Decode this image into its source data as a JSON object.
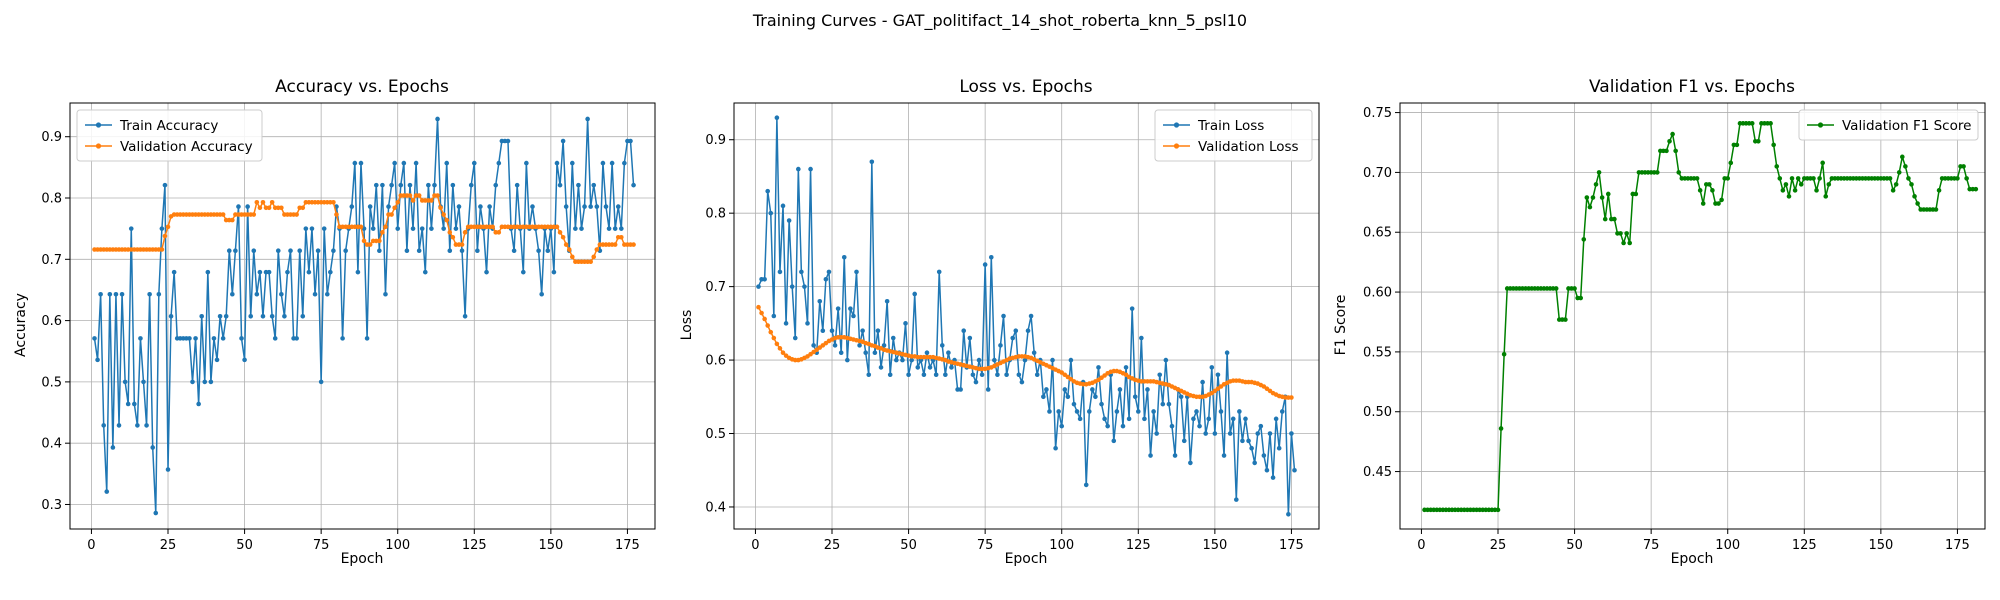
{
  "figure": {
    "suptitle": "Training Curves - GAT_politifact_14_shot_roberta_knn_5_psl10"
  },
  "colors": {
    "train": "#1f77b4",
    "validation": "#ff7f0e",
    "f1": "#008000"
  },
  "chart_data": [
    {
      "type": "line",
      "title": "Accuracy vs. Epochs",
      "xlabel": "Epoch",
      "ylabel": "Accuracy",
      "xlim": [
        -7,
        184
      ],
      "ylim": [
        0.26,
        0.955
      ],
      "xticks": [
        0,
        25,
        50,
        75,
        100,
        125,
        150,
        175
      ],
      "yticks": [
        0.3,
        0.4,
        0.5,
        0.6,
        0.7,
        0.8,
        0.9
      ],
      "ytick_labels": [
        "0.3",
        "0.4",
        "0.5",
        "0.6",
        "0.7",
        "0.8",
        "0.9"
      ],
      "grid": true,
      "legend_position": "upper left",
      "series": [
        {
          "name": "Train Accuracy",
          "color": "#1f77b4",
          "values": [
            0.571,
            0.536,
            0.643,
            0.429,
            0.321,
            0.643,
            0.393,
            0.643,
            0.429,
            0.643,
            0.5,
            0.464,
            0.75,
            0.464,
            0.429,
            0.571,
            0.5,
            0.429,
            0.643,
            0.393,
            0.286,
            0.643,
            0.75,
            0.821,
            0.357,
            0.607,
            0.679,
            0.571,
            0.571,
            0.571,
            0.571,
            0.571,
            0.5,
            0.571,
            0.464,
            0.607,
            0.5,
            0.679,
            0.5,
            0.571,
            0.536,
            0.607,
            0.571,
            0.607,
            0.714,
            0.643,
            0.714,
            0.786,
            0.571,
            0.536,
            0.786,
            0.607,
            0.714,
            0.643,
            0.679,
            0.607,
            0.679,
            0.679,
            0.607,
            0.571,
            0.714,
            0.643,
            0.607,
            0.679,
            0.714,
            0.571,
            0.571,
            0.714,
            0.607,
            0.75,
            0.679,
            0.75,
            0.643,
            0.714,
            0.5,
            0.75,
            0.643,
            0.679,
            0.714,
            0.786,
            0.75,
            0.571,
            0.714,
            0.75,
            0.786,
            0.857,
            0.679,
            0.857,
            0.75,
            0.571,
            0.786,
            0.75,
            0.821,
            0.714,
            0.821,
            0.643,
            0.786,
            0.821,
            0.857,
            0.75,
            0.821,
            0.857,
            0.714,
            0.821,
            0.75,
            0.857,
            0.714,
            0.75,
            0.679,
            0.821,
            0.75,
            0.821,
            0.929,
            0.786,
            0.75,
            0.857,
            0.714,
            0.821,
            0.75,
            0.786,
            0.714,
            0.607,
            0.75,
            0.821,
            0.857,
            0.714,
            0.786,
            0.75,
            0.679,
            0.786,
            0.75,
            0.821,
            0.857,
            0.893,
            0.893,
            0.893,
            0.75,
            0.714,
            0.821,
            0.75,
            0.679,
            0.857,
            0.75,
            0.786,
            0.75,
            0.714,
            0.643,
            0.75,
            0.714,
            0.75,
            0.679,
            0.857,
            0.821,
            0.893,
            0.786,
            0.714,
            0.857,
            0.75,
            0.821,
            0.75,
            0.786,
            0.929,
            0.786,
            0.821,
            0.786,
            0.714,
            0.857,
            0.786,
            0.75,
            0.857,
            0.75,
            0.786,
            0.75,
            0.857,
            0.893,
            0.893,
            0.821
          ]
        },
        {
          "name": "Validation Accuracy",
          "color": "#ff7f0e",
          "values": [
            0.716,
            0.716,
            0.716,
            0.716,
            0.716,
            0.716,
            0.716,
            0.716,
            0.716,
            0.716,
            0.716,
            0.716,
            0.716,
            0.716,
            0.716,
            0.716,
            0.716,
            0.716,
            0.716,
            0.716,
            0.716,
            0.716,
            0.716,
            0.738,
            0.753,
            0.77,
            0.773,
            0.773,
            0.773,
            0.773,
            0.773,
            0.773,
            0.773,
            0.773,
            0.773,
            0.773,
            0.773,
            0.773,
            0.773,
            0.773,
            0.773,
            0.773,
            0.773,
            0.764,
            0.764,
            0.764,
            0.773,
            0.773,
            0.773,
            0.773,
            0.773,
            0.773,
            0.773,
            0.793,
            0.784,
            0.793,
            0.784,
            0.784,
            0.793,
            0.784,
            0.784,
            0.784,
            0.773,
            0.773,
            0.773,
            0.773,
            0.773,
            0.784,
            0.784,
            0.793,
            0.793,
            0.793,
            0.793,
            0.793,
            0.793,
            0.793,
            0.793,
            0.793,
            0.793,
            0.773,
            0.753,
            0.753,
            0.753,
            0.753,
            0.753,
            0.753,
            0.753,
            0.753,
            0.73,
            0.724,
            0.724,
            0.73,
            0.73,
            0.73,
            0.744,
            0.753,
            0.773,
            0.773,
            0.784,
            0.793,
            0.804,
            0.804,
            0.804,
            0.804,
            0.796,
            0.804,
            0.804,
            0.796,
            0.796,
            0.796,
            0.796,
            0.804,
            0.804,
            0.784,
            0.773,
            0.764,
            0.744,
            0.736,
            0.724,
            0.724,
            0.724,
            0.744,
            0.753,
            0.753,
            0.753,
            0.753,
            0.753,
            0.753,
            0.753,
            0.753,
            0.753,
            0.744,
            0.744,
            0.753,
            0.753,
            0.753,
            0.753,
            0.753,
            0.753,
            0.753,
            0.753,
            0.753,
            0.753,
            0.753,
            0.753,
            0.753,
            0.753,
            0.753,
            0.753,
            0.753,
            0.753,
            0.753,
            0.744,
            0.736,
            0.724,
            0.716,
            0.704,
            0.696,
            0.696,
            0.696,
            0.696,
            0.696,
            0.696,
            0.704,
            0.716,
            0.724,
            0.724,
            0.724,
            0.724,
            0.724,
            0.724,
            0.736,
            0.736,
            0.724,
            0.724,
            0.724,
            0.724
          ]
        }
      ]
    },
    {
      "type": "line",
      "title": "Loss vs. Epochs",
      "xlabel": "Epoch",
      "ylabel": "Loss",
      "xlim": [
        -7,
        184
      ],
      "ylim": [
        0.37,
        0.95
      ],
      "xticks": [
        0,
        25,
        50,
        75,
        100,
        125,
        150,
        175
      ],
      "yticks": [
        0.4,
        0.5,
        0.6,
        0.7,
        0.8,
        0.9
      ],
      "ytick_labels": [
        "0.4",
        "0.5",
        "0.6",
        "0.7",
        "0.8",
        "0.9"
      ],
      "grid": true,
      "legend_position": "upper right",
      "series": [
        {
          "name": "Train Loss",
          "color": "#1f77b4",
          "values": [
            0.7,
            0.71,
            0.71,
            0.83,
            0.8,
            0.66,
            0.93,
            0.72,
            0.81,
            0.65,
            0.79,
            0.7,
            0.63,
            0.86,
            0.72,
            0.7,
            0.65,
            0.86,
            0.62,
            0.61,
            0.68,
            0.64,
            0.71,
            0.72,
            0.64,
            0.62,
            0.67,
            0.61,
            0.74,
            0.6,
            0.67,
            0.66,
            0.72,
            0.62,
            0.64,
            0.61,
            0.58,
            0.87,
            0.61,
            0.64,
            0.59,
            0.62,
            0.68,
            0.58,
            0.63,
            0.6,
            0.61,
            0.6,
            0.65,
            0.58,
            0.6,
            0.69,
            0.59,
            0.6,
            0.58,
            0.61,
            0.59,
            0.6,
            0.58,
            0.72,
            0.62,
            0.58,
            0.61,
            0.59,
            0.6,
            0.56,
            0.56,
            0.64,
            0.59,
            0.63,
            0.58,
            0.57,
            0.6,
            0.58,
            0.73,
            0.56,
            0.74,
            0.6,
            0.58,
            0.62,
            0.66,
            0.58,
            0.6,
            0.63,
            0.64,
            0.58,
            0.57,
            0.6,
            0.64,
            0.66,
            0.61,
            0.58,
            0.6,
            0.55,
            0.56,
            0.53,
            0.6,
            0.48,
            0.53,
            0.51,
            0.56,
            0.55,
            0.6,
            0.54,
            0.53,
            0.52,
            0.57,
            0.43,
            0.53,
            0.56,
            0.55,
            0.59,
            0.54,
            0.52,
            0.51,
            0.58,
            0.49,
            0.53,
            0.56,
            0.51,
            0.59,
            0.52,
            0.67,
            0.55,
            0.53,
            0.63,
            0.52,
            0.56,
            0.47,
            0.53,
            0.5,
            0.58,
            0.54,
            0.6,
            0.54,
            0.51,
            0.47,
            0.56,
            0.55,
            0.49,
            0.55,
            0.46,
            0.52,
            0.53,
            0.51,
            0.57,
            0.5,
            0.52,
            0.59,
            0.5,
            0.58,
            0.53,
            0.47,
            0.61,
            0.5,
            0.52,
            0.41,
            0.53,
            0.49,
            0.52,
            0.49,
            0.48,
            0.46,
            0.5,
            0.51,
            0.47,
            0.45,
            0.5,
            0.44,
            0.52,
            0.48,
            0.53,
            0.55,
            0.39,
            0.5,
            0.45
          ]
        },
        {
          "name": "Validation Loss",
          "color": "#ff7f0e",
          "values": [
            0.672,
            0.664,
            0.656,
            0.647,
            0.638,
            0.63,
            0.622,
            0.616,
            0.61,
            0.606,
            0.603,
            0.601,
            0.6,
            0.6,
            0.601,
            0.603,
            0.605,
            0.608,
            0.611,
            0.614,
            0.617,
            0.62,
            0.623,
            0.626,
            0.628,
            0.63,
            0.631,
            0.631,
            0.631,
            0.63,
            0.629,
            0.628,
            0.627,
            0.626,
            0.625,
            0.623,
            0.622,
            0.62,
            0.619,
            0.617,
            0.616,
            0.614,
            0.613,
            0.612,
            0.611,
            0.61,
            0.609,
            0.608,
            0.607,
            0.606,
            0.605,
            0.605,
            0.604,
            0.604,
            0.604,
            0.604,
            0.604,
            0.604,
            0.603,
            0.602,
            0.601,
            0.6,
            0.598,
            0.597,
            0.596,
            0.595,
            0.594,
            0.593,
            0.592,
            0.591,
            0.59,
            0.589,
            0.588,
            0.588,
            0.588,
            0.589,
            0.59,
            0.592,
            0.594,
            0.596,
            0.598,
            0.6,
            0.602,
            0.603,
            0.604,
            0.605,
            0.605,
            0.605,
            0.604,
            0.603,
            0.601,
            0.599,
            0.597,
            0.595,
            0.593,
            0.591,
            0.589,
            0.587,
            0.585,
            0.583,
            0.58,
            0.577,
            0.574,
            0.571,
            0.569,
            0.568,
            0.567,
            0.567,
            0.568,
            0.569,
            0.571,
            0.573,
            0.576,
            0.579,
            0.582,
            0.584,
            0.585,
            0.585,
            0.584,
            0.582,
            0.58,
            0.577,
            0.575,
            0.573,
            0.572,
            0.571,
            0.571,
            0.571,
            0.571,
            0.571,
            0.57,
            0.569,
            0.568,
            0.567,
            0.566,
            0.564,
            0.562,
            0.56,
            0.558,
            0.556,
            0.554,
            0.552,
            0.551,
            0.55,
            0.55,
            0.55,
            0.551,
            0.553,
            0.555,
            0.558,
            0.561,
            0.564,
            0.567,
            0.569,
            0.571,
            0.572,
            0.572,
            0.572,
            0.571,
            0.57,
            0.57,
            0.57,
            0.569,
            0.568,
            0.566,
            0.564,
            0.561,
            0.558,
            0.555,
            0.553,
            0.551,
            0.55,
            0.549,
            0.549,
            0.549
          ]
        }
      ]
    },
    {
      "type": "line",
      "title": "Validation F1 vs. Epochs",
      "xlabel": "Epoch",
      "ylabel": "F1 Score",
      "xlim": [
        -7,
        184
      ],
      "ylim": [
        0.402,
        0.758
      ],
      "xticks": [
        0,
        25,
        50,
        75,
        100,
        125,
        150,
        175
      ],
      "yticks": [
        0.45,
        0.5,
        0.55,
        0.6,
        0.65,
        0.7,
        0.75
      ],
      "ytick_labels": [
        "0.45",
        "0.50",
        "0.55",
        "0.60",
        "0.65",
        "0.70",
        "0.75"
      ],
      "grid": true,
      "legend_position": "upper right",
      "series": [
        {
          "name": "Validation F1 Score",
          "color": "#008000",
          "values": [
            0.418,
            0.418,
            0.418,
            0.418,
            0.418,
            0.418,
            0.418,
            0.418,
            0.418,
            0.418,
            0.418,
            0.418,
            0.418,
            0.418,
            0.418,
            0.418,
            0.418,
            0.418,
            0.418,
            0.418,
            0.418,
            0.418,
            0.418,
            0.418,
            0.418,
            0.486,
            0.548,
            0.603,
            0.603,
            0.603,
            0.603,
            0.603,
            0.603,
            0.603,
            0.603,
            0.603,
            0.603,
            0.603,
            0.603,
            0.603,
            0.603,
            0.603,
            0.603,
            0.603,
            0.577,
            0.577,
            0.577,
            0.603,
            0.603,
            0.603,
            0.595,
            0.595,
            0.644,
            0.679,
            0.671,
            0.679,
            0.69,
            0.7,
            0.679,
            0.661,
            0.682,
            0.661,
            0.661,
            0.649,
            0.649,
            0.641,
            0.649,
            0.641,
            0.682,
            0.682,
            0.7,
            0.7,
            0.7,
            0.7,
            0.7,
            0.7,
            0.7,
            0.718,
            0.718,
            0.718,
            0.726,
            0.732,
            0.718,
            0.7,
            0.695,
            0.695,
            0.695,
            0.695,
            0.695,
            0.695,
            0.685,
            0.674,
            0.69,
            0.69,
            0.685,
            0.674,
            0.674,
            0.677,
            0.695,
            0.695,
            0.708,
            0.723,
            0.723,
            0.741,
            0.741,
            0.741,
            0.741,
            0.741,
            0.726,
            0.726,
            0.741,
            0.741,
            0.741,
            0.741,
            0.723,
            0.705,
            0.695,
            0.685,
            0.69,
            0.68,
            0.695,
            0.685,
            0.695,
            0.69,
            0.695,
            0.695,
            0.695,
            0.695,
            0.685,
            0.695,
            0.708,
            0.68,
            0.69,
            0.695,
            0.695,
            0.695,
            0.695,
            0.695,
            0.695,
            0.695,
            0.695,
            0.695,
            0.695,
            0.695,
            0.695,
            0.695,
            0.695,
            0.695,
            0.695,
            0.695,
            0.695,
            0.695,
            0.695,
            0.685,
            0.69,
            0.7,
            0.713,
            0.705,
            0.695,
            0.69,
            0.68,
            0.674,
            0.669,
            0.669,
            0.669,
            0.669,
            0.669,
            0.669,
            0.685,
            0.695,
            0.695,
            0.695,
            0.695,
            0.695,
            0.695,
            0.705,
            0.705,
            0.695,
            0.686,
            0.686,
            0.686
          ]
        }
      ]
    }
  ]
}
